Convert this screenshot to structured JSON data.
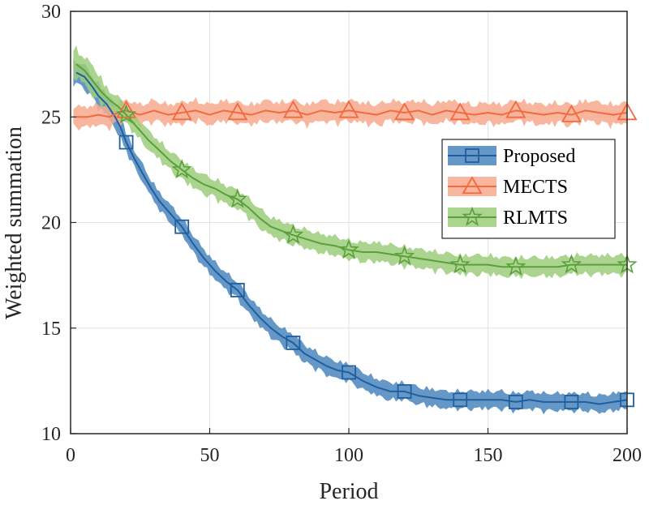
{
  "chart_data": {
    "type": "line",
    "title": "",
    "xlabel": "Period",
    "ylabel": "Weighted summation",
    "xlim": [
      0,
      200
    ],
    "ylim": [
      10,
      30
    ],
    "xticks": [
      0,
      50,
      100,
      150,
      200
    ],
    "yticks": [
      10,
      15,
      20,
      25,
      30
    ],
    "grid": true,
    "legend_position": "right-center",
    "series": [
      {
        "name": "Proposed",
        "color": "#1f5fa0",
        "fill": "#4a86bd",
        "marker": "square",
        "marker_x": [
          20,
          40,
          60,
          80,
          100,
          120,
          140,
          160,
          180,
          200
        ],
        "points": [
          [
            2,
            27.1
          ],
          [
            5,
            26.9
          ],
          [
            8,
            26.4
          ],
          [
            10,
            26.0
          ],
          [
            13,
            25.6
          ],
          [
            16,
            25.0
          ],
          [
            18,
            24.5
          ],
          [
            20,
            23.8
          ],
          [
            23,
            23.0
          ],
          [
            26,
            22.3
          ],
          [
            29,
            21.6
          ],
          [
            32,
            21.0
          ],
          [
            36,
            20.4
          ],
          [
            40,
            19.8
          ],
          [
            44,
            19.0
          ],
          [
            48,
            18.3
          ],
          [
            52,
            17.7
          ],
          [
            56,
            17.2
          ],
          [
            60,
            16.8
          ],
          [
            64,
            16.1
          ],
          [
            68,
            15.5
          ],
          [
            72,
            15.0
          ],
          [
            76,
            14.6
          ],
          [
            80,
            14.3
          ],
          [
            84,
            13.8
          ],
          [
            88,
            13.5
          ],
          [
            92,
            13.2
          ],
          [
            96,
            13.0
          ],
          [
            100,
            12.9
          ],
          [
            105,
            12.5
          ],
          [
            110,
            12.2
          ],
          [
            115,
            12.0
          ],
          [
            120,
            12.0
          ],
          [
            125,
            11.8
          ],
          [
            130,
            11.7
          ],
          [
            135,
            11.6
          ],
          [
            140,
            11.6
          ],
          [
            145,
            11.6
          ],
          [
            150,
            11.6
          ],
          [
            155,
            11.6
          ],
          [
            160,
            11.5
          ],
          [
            165,
            11.6
          ],
          [
            170,
            11.5
          ],
          [
            175,
            11.5
          ],
          [
            180,
            11.5
          ],
          [
            185,
            11.5
          ],
          [
            190,
            11.4
          ],
          [
            195,
            11.5
          ],
          [
            200,
            11.6
          ]
        ],
        "band_halfwidth": 0.55
      },
      {
        "name": "MECTS",
        "color": "#f26a3d",
        "fill": "#f7a98e",
        "marker": "triangle",
        "marker_x": [
          20,
          40,
          60,
          80,
          100,
          120,
          140,
          160,
          180,
          200
        ],
        "points": [
          [
            2,
            25.0
          ],
          [
            6,
            25.0
          ],
          [
            10,
            25.1
          ],
          [
            14,
            25.0
          ],
          [
            17,
            25.2
          ],
          [
            20,
            25.3
          ],
          [
            25,
            25.1
          ],
          [
            30,
            25.3
          ],
          [
            35,
            25.1
          ],
          [
            40,
            25.2
          ],
          [
            45,
            25.3
          ],
          [
            50,
            25.1
          ],
          [
            55,
            25.3
          ],
          [
            60,
            25.2
          ],
          [
            65,
            25.1
          ],
          [
            70,
            25.3
          ],
          [
            75,
            25.2
          ],
          [
            80,
            25.3
          ],
          [
            85,
            25.1
          ],
          [
            90,
            25.3
          ],
          [
            95,
            25.2
          ],
          [
            100,
            25.3
          ],
          [
            105,
            25.2
          ],
          [
            110,
            25.1
          ],
          [
            115,
            25.3
          ],
          [
            120,
            25.2
          ],
          [
            125,
            25.3
          ],
          [
            130,
            25.1
          ],
          [
            135,
            25.3
          ],
          [
            140,
            25.2
          ],
          [
            145,
            25.1
          ],
          [
            150,
            25.2
          ],
          [
            155,
            25.1
          ],
          [
            160,
            25.3
          ],
          [
            165,
            25.2
          ],
          [
            170,
            25.1
          ],
          [
            175,
            25.2
          ],
          [
            180,
            25.1
          ],
          [
            185,
            25.3
          ],
          [
            190,
            25.2
          ],
          [
            195,
            25.1
          ],
          [
            200,
            25.2
          ]
        ],
        "band_halfwidth": 0.65
      },
      {
        "name": "RLMTS",
        "color": "#5aa03c",
        "fill": "#9ccc7a",
        "marker": "pentagram",
        "marker_x": [
          20,
          40,
          60,
          80,
          100,
          120,
          140,
          160,
          180,
          200
        ],
        "points": [
          [
            2,
            27.5
          ],
          [
            5,
            27.2
          ],
          [
            8,
            26.7
          ],
          [
            11,
            26.2
          ],
          [
            14,
            25.8
          ],
          [
            17,
            25.5
          ],
          [
            20,
            25.1
          ],
          [
            24,
            24.5
          ],
          [
            28,
            23.9
          ],
          [
            32,
            23.4
          ],
          [
            36,
            22.9
          ],
          [
            40,
            22.5
          ],
          [
            44,
            22.1
          ],
          [
            48,
            21.8
          ],
          [
            52,
            21.6
          ],
          [
            56,
            21.3
          ],
          [
            60,
            21.1
          ],
          [
            64,
            20.7
          ],
          [
            68,
            20.2
          ],
          [
            72,
            19.8
          ],
          [
            76,
            19.6
          ],
          [
            80,
            19.4
          ],
          [
            85,
            19.2
          ],
          [
            90,
            19.0
          ],
          [
            95,
            18.9
          ],
          [
            100,
            18.7
          ],
          [
            105,
            18.6
          ],
          [
            110,
            18.6
          ],
          [
            115,
            18.5
          ],
          [
            120,
            18.4
          ],
          [
            125,
            18.3
          ],
          [
            130,
            18.2
          ],
          [
            135,
            18.1
          ],
          [
            140,
            18.0
          ],
          [
            145,
            18.0
          ],
          [
            150,
            18.0
          ],
          [
            155,
            17.9
          ],
          [
            160,
            17.9
          ],
          [
            165,
            17.9
          ],
          [
            170,
            17.9
          ],
          [
            175,
            17.9
          ],
          [
            180,
            18.0
          ],
          [
            185,
            18.0
          ],
          [
            190,
            18.0
          ],
          [
            195,
            18.0
          ],
          [
            200,
            18.0
          ]
        ],
        "band_halfwidth": 0.6
      }
    ]
  }
}
